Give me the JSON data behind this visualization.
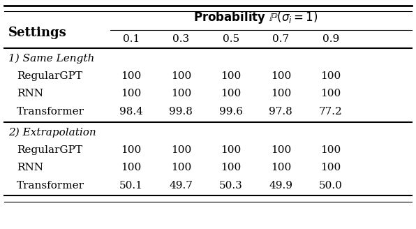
{
  "header_col": "Settings",
  "prob_values": [
    "0.1",
    "0.3",
    "0.5",
    "0.7",
    "0.9"
  ],
  "section1_label": "1) Same Length",
  "section2_label": "2) Extrapolation",
  "rows": [
    {
      "name": "RegularGPT",
      "section": 1,
      "values": [
        "100",
        "100",
        "100",
        "100",
        "100"
      ]
    },
    {
      "name": "RNN",
      "section": 1,
      "values": [
        "100",
        "100",
        "100",
        "100",
        "100"
      ]
    },
    {
      "name": "Transformer",
      "section": 1,
      "values": [
        "98.4",
        "99.8",
        "99.6",
        "97.8",
        "77.2"
      ]
    },
    {
      "name": "RegularGPT",
      "section": 2,
      "values": [
        "100",
        "100",
        "100",
        "100",
        "100"
      ]
    },
    {
      "name": "RNN",
      "section": 2,
      "values": [
        "100",
        "100",
        "100",
        "100",
        "100"
      ]
    },
    {
      "name": "Transformer",
      "section": 2,
      "values": [
        "50.1",
        "49.7",
        "50.3",
        "49.9",
        "50.0"
      ]
    }
  ],
  "bg_color": "#ffffff",
  "text_color": "#000000",
  "font_size": 11,
  "header_font_size": 12
}
